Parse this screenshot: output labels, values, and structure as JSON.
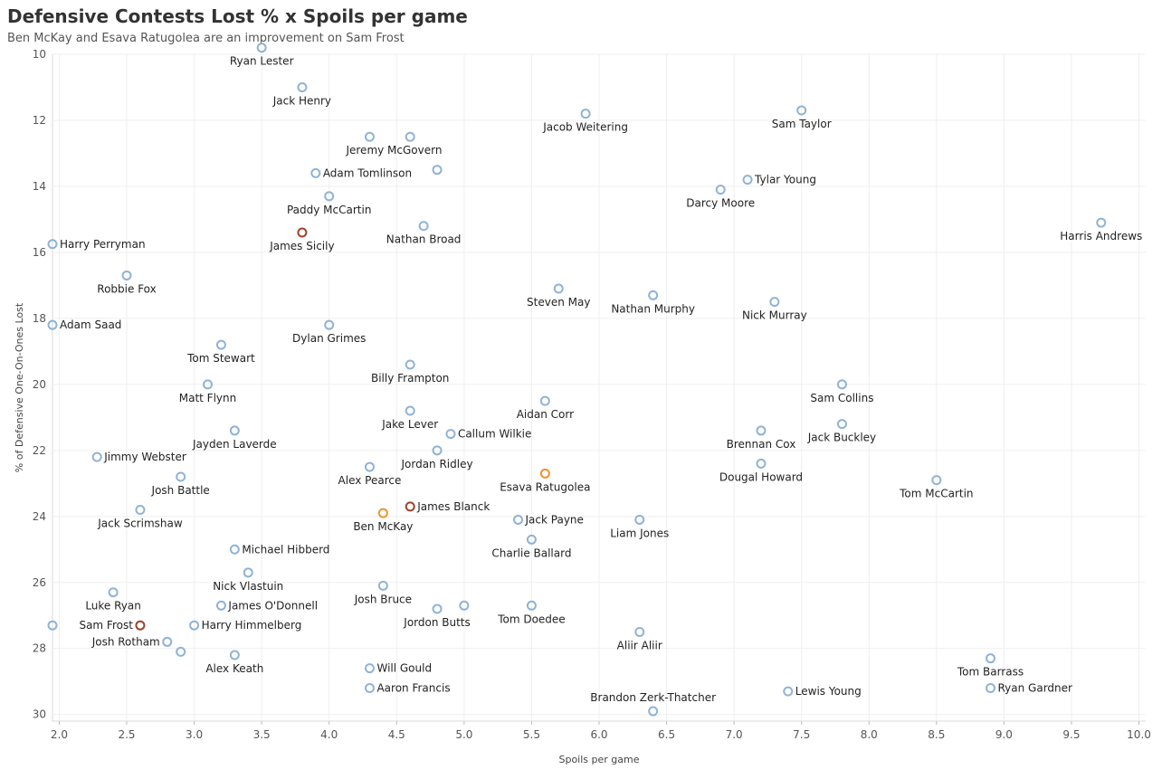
{
  "chart_data": {
    "type": "scatter",
    "title": "Defensive Contests Lost % x Spoils per game",
    "subtitle": "Ben McKay and Esava Ratugolea are an improvement on Sam Frost",
    "xlabel": "Spoils per game",
    "ylabel": "% of Defensive One-On-Ones Lost",
    "xlim": [
      1.95,
      10.05
    ],
    "ylim": [
      10,
      30.2
    ],
    "y_reversed": true,
    "x_ticks": [
      "2.0",
      "2.5",
      "3.0",
      "3.5",
      "4.0",
      "4.5",
      "5.0",
      "5.5",
      "6.0",
      "6.5",
      "7.0",
      "7.5",
      "8.0",
      "8.5",
      "9.0",
      "9.5",
      "10.0"
    ],
    "y_ticks": [
      "10",
      "12",
      "14",
      "16",
      "18",
      "20",
      "22",
      "24",
      "26",
      "28",
      "30"
    ],
    "grid": true,
    "colors": {
      "default": "#8fb3d6",
      "highlight_dark": "#a0402a",
      "highlight_orange": "#f0922b"
    },
    "points": [
      {
        "label": "Ryan Lester",
        "x": 3.5,
        "y": 9.8,
        "pos": "below"
      },
      {
        "label": "Jack Henry",
        "x": 3.8,
        "y": 11.0,
        "pos": "below"
      },
      {
        "label": "Jacob Weitering",
        "x": 5.9,
        "y": 11.8,
        "pos": "below"
      },
      {
        "label": "Sam Taylor",
        "x": 7.5,
        "y": 11.7,
        "pos": "below"
      },
      {
        "label": "Jeremy McGovern",
        "x": 4.3,
        "y": 12.5,
        "pos": "below-right"
      },
      {
        "label": "",
        "x": 4.6,
        "y": 12.5,
        "pos": "none"
      },
      {
        "label": "Adam Tomlinson",
        "x": 3.9,
        "y": 13.6,
        "pos": "right"
      },
      {
        "label": "",
        "x": 4.8,
        "y": 13.5,
        "pos": "none"
      },
      {
        "label": "Tylar Young",
        "x": 7.1,
        "y": 13.8,
        "pos": "right"
      },
      {
        "label": "Darcy Moore",
        "x": 6.9,
        "y": 14.1,
        "pos": "below"
      },
      {
        "label": "Paddy McCartin",
        "x": 4.0,
        "y": 14.3,
        "pos": "below"
      },
      {
        "label": "Harris Andrews",
        "x": 9.72,
        "y": 15.1,
        "pos": "below"
      },
      {
        "label": "Nathan Broad",
        "x": 4.7,
        "y": 15.2,
        "pos": "below"
      },
      {
        "label": "James Sicily",
        "x": 3.8,
        "y": 15.4,
        "pos": "below",
        "color": "highlight_dark"
      },
      {
        "label": "Harry Perryman",
        "x": 1.95,
        "y": 15.75,
        "pos": "right"
      },
      {
        "label": "Robbie Fox",
        "x": 2.5,
        "y": 16.7,
        "pos": "below"
      },
      {
        "label": "Steven May",
        "x": 5.7,
        "y": 17.1,
        "pos": "below"
      },
      {
        "label": "Nathan Murphy",
        "x": 6.4,
        "y": 17.3,
        "pos": "below"
      },
      {
        "label": "Nick Murray",
        "x": 7.3,
        "y": 17.5,
        "pos": "below"
      },
      {
        "label": "Adam Saad",
        "x": 1.95,
        "y": 18.2,
        "pos": "right"
      },
      {
        "label": "Dylan Grimes",
        "x": 4.0,
        "y": 18.2,
        "pos": "below"
      },
      {
        "label": "Tom Stewart",
        "x": 3.2,
        "y": 18.8,
        "pos": "below"
      },
      {
        "label": "Billy Frampton",
        "x": 4.6,
        "y": 19.4,
        "pos": "below"
      },
      {
        "label": "Matt Flynn",
        "x": 3.1,
        "y": 20.0,
        "pos": "below"
      },
      {
        "label": "Sam Collins",
        "x": 7.8,
        "y": 20.0,
        "pos": "below"
      },
      {
        "label": "Aidan Corr",
        "x": 5.6,
        "y": 20.5,
        "pos": "below"
      },
      {
        "label": "Jake Lever",
        "x": 4.6,
        "y": 20.8,
        "pos": "below"
      },
      {
        "label": "Jack Buckley",
        "x": 7.8,
        "y": 21.2,
        "pos": "below"
      },
      {
        "label": "Jayden Laverde",
        "x": 3.3,
        "y": 21.4,
        "pos": "below"
      },
      {
        "label": "Brennan Cox",
        "x": 7.2,
        "y": 21.4,
        "pos": "below"
      },
      {
        "label": "Callum Wilkie",
        "x": 4.9,
        "y": 21.5,
        "pos": "right"
      },
      {
        "label": "Jordan Ridley",
        "x": 4.8,
        "y": 22.0,
        "pos": "below"
      },
      {
        "label": "Jimmy Webster",
        "x": 2.28,
        "y": 22.2,
        "pos": "right"
      },
      {
        "label": "Dougal Howard",
        "x": 7.2,
        "y": 22.4,
        "pos": "below"
      },
      {
        "label": "Alex Pearce",
        "x": 4.3,
        "y": 22.5,
        "pos": "below"
      },
      {
        "label": "Esava Ratugolea",
        "x": 5.6,
        "y": 22.7,
        "pos": "below",
        "color": "highlight_orange"
      },
      {
        "label": "Josh Battle",
        "x": 2.9,
        "y": 22.8,
        "pos": "below"
      },
      {
        "label": "Tom McCartin",
        "x": 8.5,
        "y": 22.9,
        "pos": "below"
      },
      {
        "label": "James Blanck",
        "x": 4.6,
        "y": 23.7,
        "pos": "right",
        "color": "highlight_dark"
      },
      {
        "label": "Jack Scrimshaw",
        "x": 2.6,
        "y": 23.8,
        "pos": "below"
      },
      {
        "label": "Ben McKay",
        "x": 4.4,
        "y": 23.9,
        "pos": "below",
        "color": "highlight_orange"
      },
      {
        "label": "Jack Payne",
        "x": 5.4,
        "y": 24.1,
        "pos": "right"
      },
      {
        "label": "Liam Jones",
        "x": 6.3,
        "y": 24.1,
        "pos": "below"
      },
      {
        "label": "Charlie Ballard",
        "x": 5.5,
        "y": 24.7,
        "pos": "below"
      },
      {
        "label": "Michael Hibberd",
        "x": 3.3,
        "y": 25.0,
        "pos": "right"
      },
      {
        "label": "Nick Vlastuin",
        "x": 3.4,
        "y": 25.7,
        "pos": "below"
      },
      {
        "label": "Josh Bruce",
        "x": 4.4,
        "y": 26.1,
        "pos": "below"
      },
      {
        "label": "Luke Ryan",
        "x": 2.4,
        "y": 26.3,
        "pos": "below"
      },
      {
        "label": "James O'Donnell",
        "x": 3.2,
        "y": 26.7,
        "pos": "right"
      },
      {
        "label": "",
        "x": 5.0,
        "y": 26.7,
        "pos": "none"
      },
      {
        "label": "Tom Doedee",
        "x": 5.5,
        "y": 26.7,
        "pos": "below"
      },
      {
        "label": "Jordon Butts",
        "x": 4.8,
        "y": 26.8,
        "pos": "below"
      },
      {
        "label": "",
        "x": 1.95,
        "y": 27.3,
        "pos": "none"
      },
      {
        "label": "Sam Frost",
        "x": 2.6,
        "y": 27.3,
        "pos": "left",
        "color": "highlight_dark"
      },
      {
        "label": "Harry Himmelberg",
        "x": 3.0,
        "y": 27.3,
        "pos": "right"
      },
      {
        "label": "Aliir Aliir",
        "x": 6.3,
        "y": 27.5,
        "pos": "below"
      },
      {
        "label": "Josh Rotham",
        "x": 2.8,
        "y": 27.8,
        "pos": "left"
      },
      {
        "label": "",
        "x": 2.9,
        "y": 28.1,
        "pos": "none"
      },
      {
        "label": "Alex Keath",
        "x": 3.3,
        "y": 28.2,
        "pos": "below"
      },
      {
        "label": "Tom Barrass",
        "x": 8.9,
        "y": 28.3,
        "pos": "below"
      },
      {
        "label": "Will Gould",
        "x": 4.3,
        "y": 28.6,
        "pos": "right"
      },
      {
        "label": "Aaron Francis",
        "x": 4.3,
        "y": 29.2,
        "pos": "right"
      },
      {
        "label": "Ryan Gardner",
        "x": 8.9,
        "y": 29.2,
        "pos": "right"
      },
      {
        "label": "Lewis Young",
        "x": 7.4,
        "y": 29.3,
        "pos": "right"
      },
      {
        "label": "Brandon Zerk-Thatcher",
        "x": 6.4,
        "y": 29.9,
        "pos": "above"
      }
    ]
  }
}
